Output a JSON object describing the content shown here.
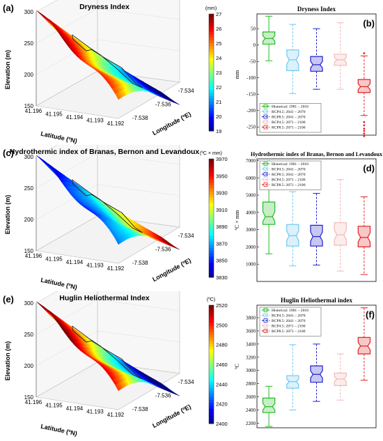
{
  "chart_data": [
    {
      "panel": "(a)",
      "type": "surface3d",
      "title": "Dryness Index",
      "zlabel": "Elevation (m)",
      "xlabel": "Latitude (ºN)",
      "ylabel": "Longitude (ºE)",
      "zticks": [
        "150",
        "200",
        "250",
        "300"
      ],
      "lat_ticks": [
        "41.196",
        "41.195",
        "41.194",
        "41.193",
        "41.192"
      ],
      "lon_ticks": [
        "-7.538",
        "-7.536",
        "-7.534"
      ],
      "colorbar": {
        "unit": "(mm)",
        "min": 19,
        "max": 27,
        "ticks": [
          "27",
          "26",
          "25",
          "24",
          "23",
          "22",
          "21",
          "20",
          "19"
        ],
        "scheme": "jet_reversed"
      }
    },
    {
      "panel": "(b)",
      "type": "boxplot",
      "title": "Dryness Index",
      "ylabel": "mm",
      "ylim": [
        -275,
        95
      ],
      "yticks": [
        "50",
        "0",
        "-50",
        "-100",
        "-150",
        "-200",
        "-250"
      ],
      "legend_position": "bottom-left",
      "series": [
        {
          "name": "Historical: 1981 – 2010",
          "color": "#22bb22",
          "dash": false,
          "min": -48,
          "q1": 3,
          "median": 20,
          "q3": 40,
          "max": 88
        },
        {
          "name": "RCP4.5: 2041 – 2070",
          "color": "#6fc8ee",
          "dash": true,
          "min": -148,
          "q1": -78,
          "median": -45,
          "q3": -15,
          "max": 63
        },
        {
          "name": "RCP8.5: 2041 – 2070",
          "color": "#2020cc",
          "dash": true,
          "min": -135,
          "q1": -80,
          "median": -60,
          "q3": -35,
          "max": 50
        },
        {
          "name": "RCP4.5: 2071 – 2100",
          "color": "#f4b6b6",
          "dash": true,
          "min": -135,
          "q1": -62,
          "median": -45,
          "q3": -28,
          "max": 68
        },
        {
          "name": "RCP8.5: 2071 – 2100",
          "color": "#e22222",
          "dash": true,
          "min": -215,
          "q1": -145,
          "median": -127,
          "q3": -105,
          "max": -33,
          "outliers": [
            -25,
            -235,
            -245,
            -255,
            -262,
            -270,
            -278
          ]
        }
      ]
    },
    {
      "panel": "(c)",
      "type": "surface3d",
      "title": "Hydrothermic index of Branas, Bernon and Levandoux",
      "zlabel": "Elevation (m)",
      "xlabel": "Latitude (ºN)",
      "ylabel": "Longitude (ºE)",
      "zticks": [
        "150",
        "200",
        "250",
        "300"
      ],
      "lat_ticks": [
        "41.196",
        "41.195",
        "41.194",
        "41.193",
        "41.192"
      ],
      "lon_ticks": [
        "-7.538",
        "-7.536",
        "-7.534"
      ],
      "colorbar": {
        "unit": "(ºC × mm)",
        "min": 3830,
        "max": 3970,
        "ticks": [
          "3970",
          "3950",
          "3930",
          "3910",
          "3890",
          "3870",
          "3850",
          "3830"
        ],
        "scheme": "jet_reversed"
      }
    },
    {
      "panel": "(d)",
      "type": "boxplot",
      "title": "Hydrothermic index of Branas, Bernon and Levandoux",
      "ylabel": "ºC × mm",
      "ylim": [
        0,
        7100
      ],
      "yticks": [
        "7000",
        "6000",
        "5000",
        "4000",
        "3000",
        "2000",
        "1000"
      ],
      "legend_position": "top-left",
      "series": [
        {
          "name": "Historical: 1981 – 2010",
          "color": "#22bb22",
          "dash": false,
          "min": 1600,
          "q1": 3300,
          "median": 3750,
          "q3": 4600,
          "max": 6700,
          "outliers": [
            6950
          ]
        },
        {
          "name": "RCP4.5: 2041 – 2070",
          "color": "#6fc8ee",
          "dash": true,
          "min": 900,
          "q1": 2050,
          "median": 2650,
          "q3": 3300,
          "max": 5200
        },
        {
          "name": "RCP8.5: 2041 – 2070",
          "color": "#2020cc",
          "dash": true,
          "min": 950,
          "q1": 2050,
          "median": 2600,
          "q3": 3250,
          "max": 5100,
          "outliers": [
            6100
          ]
        },
        {
          "name": "RCP4.5: 2071 – 2100",
          "color": "#f4b6b6",
          "dash": true,
          "min": 600,
          "q1": 2100,
          "median": 2700,
          "q3": 3400,
          "max": 5900
        },
        {
          "name": "RCP8.5: 2071 – 2100",
          "color": "#e22222",
          "dash": true,
          "min": 400,
          "q1": 2000,
          "median": 2550,
          "q3": 3200,
          "max": 4900
        }
      ]
    },
    {
      "panel": "(e)",
      "type": "surface3d",
      "title": "Huglin Heliothermal Index",
      "zlabel": "Elevation (m)",
      "xlabel": "Latitude (ºN)",
      "ylabel": "Longitude (ºE)",
      "zticks": [
        "150",
        "200",
        "250",
        "300"
      ],
      "lat_ticks": [
        "41.196",
        "41.195",
        "41.194",
        "41.193",
        "41.192"
      ],
      "lon_ticks": [
        "-7.538",
        "-7.536",
        "-7.534"
      ],
      "colorbar": {
        "unit": "(ºC)",
        "min": 2400,
        "max": 2520,
        "ticks": [
          "2520",
          "2500",
          "2480",
          "2460",
          "2440",
          "2420",
          "2400"
        ],
        "scheme": "jet_reversed"
      }
    },
    {
      "panel": "(f)",
      "type": "boxplot",
      "title": "Huglin Heliothermal index",
      "ylabel": "ºC",
      "ylim": [
        2130,
        3990
      ],
      "yticks": [
        "3800",
        "3600",
        "3400",
        "3200",
        "3000",
        "2800",
        "2600",
        "2400",
        "2200"
      ],
      "legend_position": "top-left",
      "series": [
        {
          "name": "Historical: 1981 – 2010",
          "color": "#22bb22",
          "dash": false,
          "min": 2150,
          "q1": 2360,
          "median": 2450,
          "q3": 2580,
          "max": 2760
        },
        {
          "name": "RCP4.5: 2041 – 2070",
          "color": "#6fc8ee",
          "dash": true,
          "min": 2400,
          "q1": 2730,
          "median": 2830,
          "q3": 2920,
          "max": 3390
        },
        {
          "name": "RCP8.5: 2041 – 2070",
          "color": "#2020cc",
          "dash": true,
          "min": 2530,
          "q1": 2820,
          "median": 2940,
          "q3": 3070,
          "max": 3400
        },
        {
          "name": "RCP4.5: 2071 – 2100",
          "color": "#f4b6b6",
          "dash": true,
          "min": 2550,
          "q1": 2770,
          "median": 2870,
          "q3": 2960,
          "max": 3250
        },
        {
          "name": "RCP8.5: 2071 – 2100",
          "color": "#e22222",
          "dash": true,
          "min": 2850,
          "q1": 3250,
          "median": 3370,
          "q3": 3500,
          "max": 3950
        }
      ]
    }
  ]
}
